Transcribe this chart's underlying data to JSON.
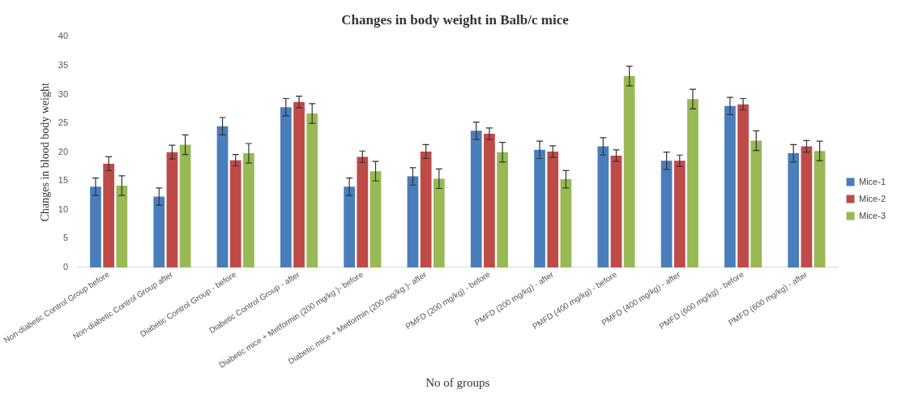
{
  "chart_data": {
    "type": "bar",
    "title": "Changes in body weight in Balb/c mice",
    "xlabel": "No of groups",
    "ylabel": "Changes in blood body weight",
    "categories": [
      "Non-diabetic Control Group before",
      "Non-diabetic Control Group after",
      "Diabetic Control Group - before",
      "Diabetic Control Group - after",
      "Diabetic mice + Metformin (200 mg/kg )- before",
      "Diabetic mice + Metformin (200 mg/kg )- after",
      "PMFD (200 mg/kg) - before",
      "PMFD (200 mg/kg) - after",
      "PMFD (400 mg/kg) - before",
      "PMFD (400 mg/kg) - after",
      "PMFD (600 mg/kg) - before",
      "PMFD (600 mg/kg) - after"
    ],
    "series": [
      {
        "name": "Mice-1",
        "color": "#4a7ebb",
        "values": [
          14,
          12.3,
          24.5,
          27.8,
          14,
          15.8,
          23.7,
          20.4,
          21,
          18.5,
          28,
          19.8
        ],
        "errors": [
          1.5,
          1.5,
          1.5,
          1.5,
          1.5,
          1.5,
          1.5,
          1.5,
          1.5,
          1.5,
          1.5,
          1.5
        ]
      },
      {
        "name": "Mice-2",
        "color": "#be4b48",
        "values": [
          18,
          20,
          18.6,
          28.7,
          19.2,
          20.1,
          23.2,
          20.1,
          19.4,
          18.5,
          28.3,
          21
        ],
        "errors": [
          1.2,
          1.2,
          1,
          1,
          1,
          1.2,
          1,
          1,
          1,
          1,
          1,
          1
        ]
      },
      {
        "name": "Mice-3",
        "color": "#98b954",
        "values": [
          14.2,
          21.3,
          19.8,
          26.7,
          16.7,
          15.4,
          20,
          15.3,
          33.2,
          29.2,
          22,
          20.2
        ],
        "errors": [
          1.7,
          1.7,
          1.7,
          1.7,
          1.7,
          1.7,
          1.7,
          1.5,
          1.7,
          1.7,
          1.7,
          1.7
        ]
      }
    ],
    "ylim": [
      0,
      40
    ],
    "yticks": [
      0,
      5,
      10,
      15,
      20,
      25,
      30,
      35,
      40
    ],
    "grid": false,
    "legend": "right"
  }
}
